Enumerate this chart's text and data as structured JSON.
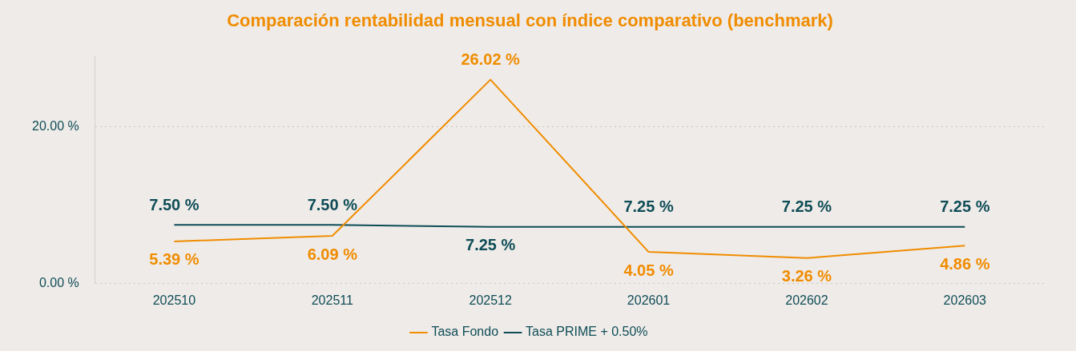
{
  "chart_data": {
    "type": "line",
    "title": "Comparación rentabilidad mensual con índice comparativo (benchmark)",
    "categories": [
      "202510",
      "202511",
      "202512",
      "202601",
      "202602",
      "202603"
    ],
    "series": [
      {
        "name": "Tasa Fondo",
        "color": "#f08c00",
        "values": [
          5.39,
          6.09,
          26.02,
          4.05,
          3.26,
          4.86
        ],
        "value_labels": [
          "5.39 %",
          "6.09 %",
          "26.02 %",
          "4.05 %",
          "3.26 %",
          "4.86 %"
        ]
      },
      {
        "name": "Tasa PRIME + 0.50%",
        "color": "#0e4d57",
        "values": [
          7.5,
          7.5,
          7.25,
          7.25,
          7.25,
          7.25
        ],
        "value_labels": [
          "7.50 %",
          "7.50 %",
          "7.25 %",
          "7.25 %",
          "7.25 %",
          "7.25 %"
        ]
      }
    ],
    "ylim": [
      0,
      29
    ],
    "yticks": [
      {
        "value": 0,
        "label": "0.00 %"
      },
      {
        "value": 20,
        "label": "20.00 %"
      }
    ],
    "grid": "y",
    "legend": "bottom",
    "marker": "none",
    "line_style": "solid"
  }
}
